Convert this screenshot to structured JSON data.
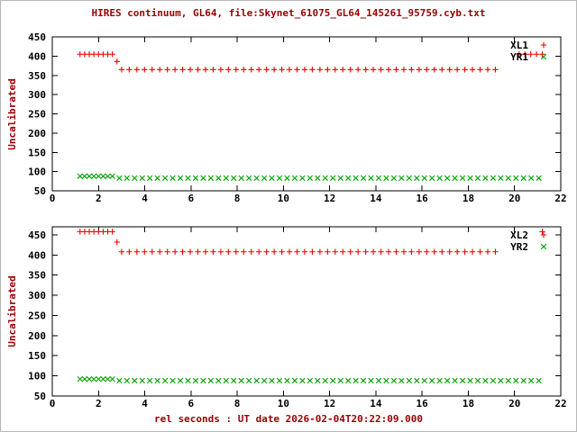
{
  "title": "HIRES continuum, GL64, file:Skynet_61075_GL64_145261_95759.cyb.txt",
  "xlabel": "rel seconds : UT date 2026-02-04T20:22:09.000",
  "colors": {
    "title": "#990000",
    "axis_label": "#990000",
    "tick_text": "#000000",
    "border": "#000000",
    "series_red": "#ee0000",
    "series_green": "#00a000",
    "background": "#ffffff"
  },
  "chart_data": [
    {
      "type": "scatter",
      "panel": "top",
      "ylabel": "Uncalibrated",
      "xlim": [
        0,
        22
      ],
      "ylim": [
        50,
        450
      ],
      "xticks": [
        0,
        2,
        4,
        6,
        8,
        10,
        12,
        14,
        16,
        18,
        20,
        22
      ],
      "yticks": [
        50,
        100,
        150,
        200,
        250,
        300,
        350,
        400,
        450
      ],
      "grid": false,
      "legend_position": "top-right",
      "series": [
        {
          "name": "XL1",
          "marker": "plus",
          "color": "#ee0000",
          "runs": [
            {
              "x0": 1.2,
              "x1": 2.6,
              "dx": 0.2,
              "y": 405
            },
            {
              "x0": 3.0,
              "x1": 19.4,
              "dx": 0.33,
              "y": 365
            },
            {
              "x0": 20.2,
              "x1": 21.2,
              "dx": 0.25,
              "y": 405
            }
          ],
          "points": [
            [
              2.8,
              386
            ]
          ]
        },
        {
          "name": "YR1",
          "marker": "times",
          "color": "#00a000",
          "runs": [
            {
              "x0": 1.2,
              "x1": 2.6,
              "dx": 0.2,
              "y": 88
            },
            {
              "x0": 2.9,
              "x1": 21.05,
              "dx": 0.33,
              "y": 83
            }
          ],
          "points": []
        }
      ]
    },
    {
      "type": "scatter",
      "panel": "bottom",
      "ylabel": "Uncalibrated",
      "xlim": [
        0,
        22
      ],
      "ylim": [
        50,
        470
      ],
      "xticks": [
        0,
        2,
        4,
        6,
        8,
        10,
        12,
        14,
        16,
        18,
        20,
        22
      ],
      "yticks": [
        50,
        100,
        150,
        200,
        250,
        300,
        350,
        400,
        450
      ],
      "grid": false,
      "legend_position": "top-right",
      "series": [
        {
          "name": "XL2",
          "marker": "plus",
          "color": "#ee0000",
          "runs": [
            {
              "x0": 1.2,
              "x1": 2.6,
              "dx": 0.2,
              "y": 458
            },
            {
              "x0": 3.0,
              "x1": 19.4,
              "dx": 0.33,
              "y": 408
            }
          ],
          "points": [
            [
              2.8,
              432
            ],
            [
              21.2,
              458
            ]
          ]
        },
        {
          "name": "YR2",
          "marker": "times",
          "color": "#00a000",
          "runs": [
            {
              "x0": 1.2,
              "x1": 2.6,
              "dx": 0.2,
              "y": 92
            },
            {
              "x0": 2.9,
              "x1": 21.05,
              "dx": 0.33,
              "y": 88
            }
          ],
          "points": []
        }
      ]
    }
  ]
}
